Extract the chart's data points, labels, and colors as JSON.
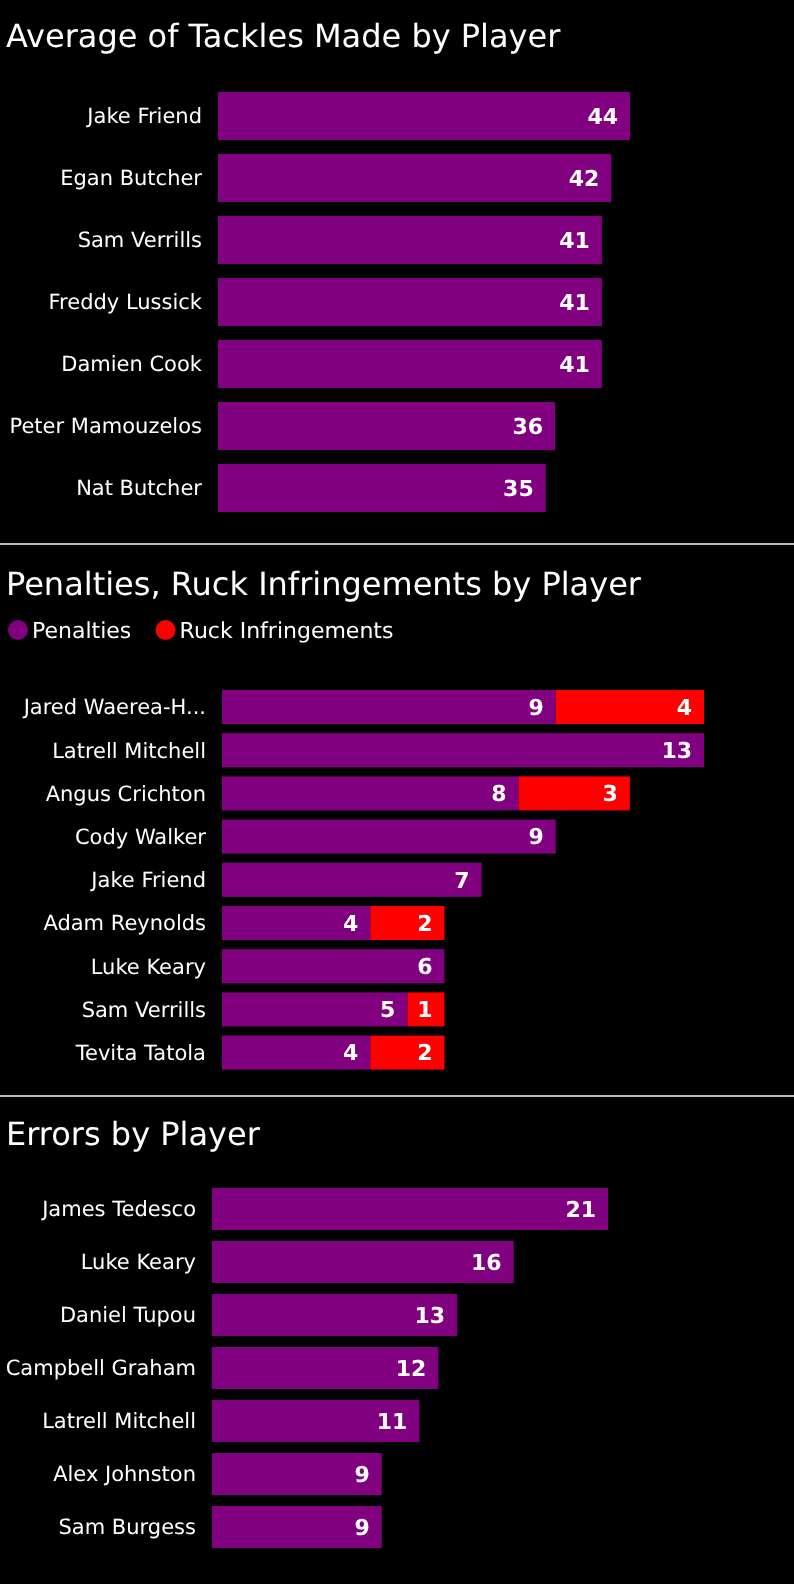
{
  "chart_data": [
    {
      "type": "bar",
      "orientation": "horizontal",
      "title": "Average of Tackles Made by Player",
      "categories": [
        "Jake Friend",
        "Egan Butcher",
        "Sam Verrills",
        "Freddy Lussick",
        "Damien Cook",
        "Peter Mamouzelos",
        "Nat Butcher"
      ],
      "values": [
        44,
        42,
        41,
        41,
        41,
        36,
        35
      ],
      "color": "#800080",
      "data_labels": true,
      "legend": false,
      "grid": false
    },
    {
      "type": "bar",
      "orientation": "horizontal",
      "stacked": true,
      "title": "Penalties, Ruck Infringements by Player",
      "categories": [
        "Jared Waerea-H...",
        "Latrell Mitchell",
        "Angus Crichton",
        "Cody Walker",
        "Jake Friend",
        "Adam Reynolds",
        "Luke Keary",
        "Sam Verrills",
        "Tevita Tatola"
      ],
      "series": [
        {
          "name": "Penalties",
          "color": "#800080",
          "values": [
            9,
            13,
            8,
            9,
            7,
            4,
            6,
            5,
            4
          ]
        },
        {
          "name": "Ruck Infringements",
          "color": "#ff0000",
          "values": [
            4,
            null,
            3,
            null,
            null,
            2,
            null,
            1,
            2
          ]
        }
      ],
      "data_labels": true,
      "legend": "top left",
      "grid": false
    },
    {
      "type": "bar",
      "orientation": "horizontal",
      "title": "Errors by Player",
      "categories": [
        "James Tedesco",
        "Luke Keary",
        "Daniel Tupou",
        "Campbell Graham",
        "Latrell Mitchell",
        "Alex Johnston",
        "Sam Burgess"
      ],
      "values": [
        21,
        16,
        13,
        12,
        11,
        9,
        9
      ],
      "color": "#800080",
      "data_labels": true,
      "legend": false,
      "grid": false
    }
  ]
}
